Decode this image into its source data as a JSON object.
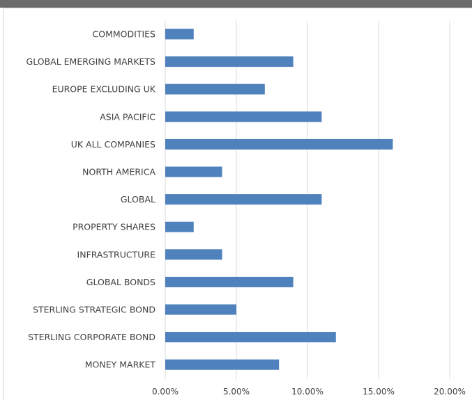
{
  "chart_data": {
    "type": "bar",
    "orientation": "horizontal",
    "categories": [
      "COMMODITIES",
      "GLOBAL EMERGING MARKETS",
      "EUROPE EXCLUDING UK",
      "ASIA PACIFIC",
      "UK ALL COMPANIES",
      "NORTH AMERICA",
      "GLOBAL",
      "PROPERTY SHARES",
      "INFRASTRUCTURE",
      "GLOBAL BONDS",
      "STERLING STRATEGIC BOND",
      "STERLING CORPORATE BOND",
      "MONEY MARKET"
    ],
    "values": [
      2,
      9,
      7,
      11,
      16,
      4,
      11,
      2,
      4,
      9,
      5,
      12,
      8
    ],
    "xlim": [
      0,
      20
    ],
    "x_ticks": [
      0,
      5,
      10,
      15,
      20
    ],
    "x_tick_labels": [
      "0.00%",
      "5.00%",
      "10.00%",
      "15.00%",
      "20.00%"
    ],
    "grid": "vertical",
    "bar_color": "#4f81bd",
    "grid_color": "#d9d9d9",
    "title": "",
    "xlabel": "",
    "ylabel": ""
  }
}
